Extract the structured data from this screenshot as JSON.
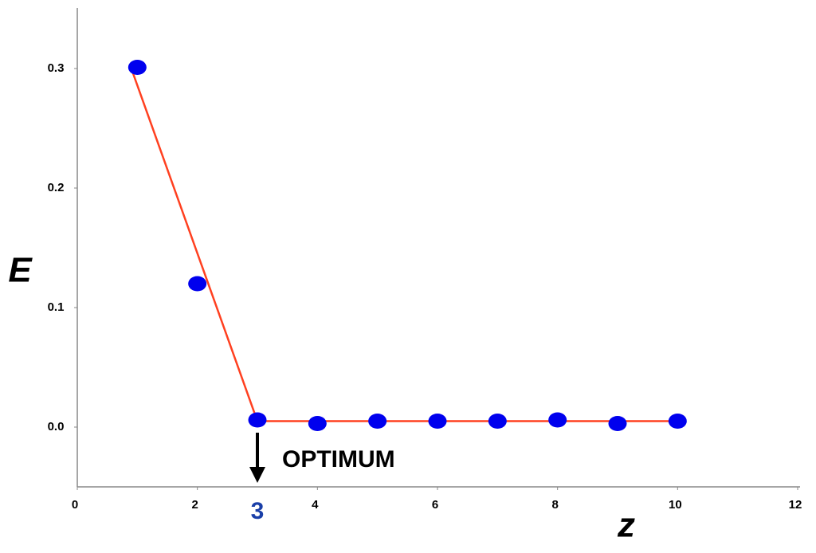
{
  "chart_data": {
    "type": "scatter",
    "x_label": "z",
    "y_label": "E",
    "xlim": [
      0,
      12
    ],
    "xticks": [
      0,
      2,
      4,
      6,
      8,
      10,
      12
    ],
    "ylim": [
      -0.05,
      0.35
    ],
    "yticks": [
      {
        "value": 0,
        "label": "0.0"
      },
      0.1,
      0.2,
      0.3
    ],
    "series": [
      {
        "color": "#0000ee",
        "x": [
          1,
          2,
          3,
          4,
          5,
          6,
          7,
          8,
          9,
          10
        ],
        "values": [
          0.301,
          0.12,
          0.006,
          0.003,
          0.005,
          0.005,
          0.005,
          0.006,
          0.003,
          0.005
        ]
      }
    ],
    "fit_line": {
      "color": "#ff4020",
      "x": [
        0.9,
        3,
        10
      ],
      "values": [
        0.3,
        0.005,
        0.005
      ]
    },
    "optimum": {
      "x": 3,
      "text": "OPTIMUM",
      "color": "#1a3fa8"
    }
  }
}
